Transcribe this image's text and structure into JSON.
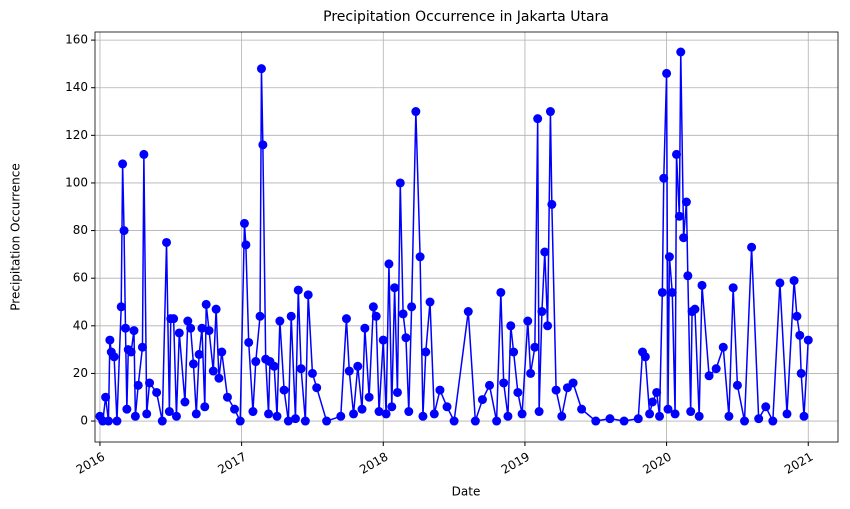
{
  "chart_data": {
    "type": "line",
    "title": "Precipitation Occurrence in Jakarta Utara",
    "x_label": "Date",
    "y_label": "Precipitation Occurrence",
    "x": [
      2016.0,
      2016.02,
      2016.04,
      2016.06,
      2016.07,
      2016.08,
      2016.1,
      2016.12,
      2016.15,
      2016.16,
      2016.17,
      2016.18,
      2016.19,
      2016.2,
      2016.22,
      2016.24,
      2016.25,
      2016.27,
      2016.3,
      2016.31,
      2016.33,
      2016.35,
      2016.4,
      2016.44,
      2016.47,
      2016.49,
      2016.5,
      2016.52,
      2016.54,
      2016.56,
      2016.6,
      2016.62,
      2016.64,
      2016.66,
      2016.68,
      2016.7,
      2016.72,
      2016.74,
      2016.75,
      2016.77,
      2016.8,
      2016.82,
      2016.84,
      2016.86,
      2016.9,
      2016.95,
      2016.99,
      2017.02,
      2017.03,
      2017.05,
      2017.08,
      2017.1,
      2017.13,
      2017.14,
      2017.15,
      2017.17,
      2017.19,
      2017.2,
      2017.23,
      2017.25,
      2017.27,
      2017.3,
      2017.33,
      2017.35,
      2017.38,
      2017.4,
      2017.42,
      2017.45,
      2017.47,
      2017.5,
      2017.53,
      2017.6,
      2017.7,
      2017.74,
      2017.76,
      2017.79,
      2017.82,
      2017.85,
      2017.87,
      2017.9,
      2017.93,
      2017.95,
      2017.97,
      2018.0,
      2018.02,
      2018.04,
      2018.06,
      2018.08,
      2018.1,
      2018.12,
      2018.14,
      2018.16,
      2018.18,
      2018.2,
      2018.23,
      2018.26,
      2018.28,
      2018.3,
      2018.33,
      2018.36,
      2018.4,
      2018.45,
      2018.5,
      2018.6,
      2018.65,
      2018.7,
      2018.75,
      2018.8,
      2018.83,
      2018.85,
      2018.88,
      2018.9,
      2018.92,
      2018.95,
      2018.98,
      2019.02,
      2019.04,
      2019.07,
      2019.09,
      2019.1,
      2019.12,
      2019.14,
      2019.16,
      2019.18,
      2019.19,
      2019.22,
      2019.26,
      2019.3,
      2019.34,
      2019.4,
      2019.5,
      2019.6,
      2019.7,
      2019.8,
      2019.83,
      2019.85,
      2019.88,
      2019.9,
      2019.93,
      2019.95,
      2019.97,
      2019.98,
      2020.0,
      2020.01,
      2020.02,
      2020.04,
      2020.06,
      2020.07,
      2020.09,
      2020.1,
      2020.12,
      2020.14,
      2020.15,
      2020.17,
      2020.18,
      2020.2,
      2020.23,
      2020.25,
      2020.3,
      2020.35,
      2020.4,
      2020.44,
      2020.47,
      2020.5,
      2020.55,
      2020.6,
      2020.65,
      2020.7,
      2020.75,
      2020.8,
      2020.85,
      2020.9,
      2020.92,
      2020.94,
      2020.95,
      2020.97,
      2021.0
    ],
    "series": [
      {
        "color": "#0000ff",
        "values": [
          2,
          0,
          10,
          0,
          34,
          29,
          27,
          0,
          48,
          108,
          80,
          39,
          5,
          30,
          29,
          38,
          2,
          15,
          31,
          112,
          3,
          16,
          12,
          0,
          75,
          4,
          43,
          43,
          2,
          37,
          8,
          42,
          39,
          24,
          3,
          28,
          39,
          6,
          49,
          38,
          21,
          47,
          18,
          29,
          10,
          5,
          0,
          83,
          74,
          33,
          4,
          25,
          44,
          148,
          116,
          26,
          3,
          25,
          23,
          2,
          42,
          13,
          0,
          44,
          1,
          55,
          22,
          0,
          53,
          20,
          14,
          0,
          2,
          43,
          21,
          3,
          23,
          5,
          39,
          10,
          48,
          44,
          4,
          34,
          3,
          66,
          6,
          56,
          12,
          100,
          45,
          35,
          4,
          48,
          130,
          69,
          2,
          29,
          50,
          3,
          13,
          6,
          0,
          46,
          0,
          9,
          15,
          0,
          54,
          16,
          2,
          40,
          29,
          12,
          3,
          42,
          20,
          31,
          127,
          4,
          46,
          71,
          40,
          130,
          91,
          13,
          2,
          14,
          16,
          5,
          0,
          1,
          0,
          1,
          29,
          27,
          3,
          8,
          12,
          2,
          54,
          102,
          146,
          5,
          69,
          54,
          3,
          112,
          86,
          155,
          77,
          92,
          61,
          4,
          46,
          47,
          2,
          57,
          19,
          22,
          31,
          2,
          56,
          15,
          0,
          73,
          1,
          6,
          0,
          58,
          3,
          59,
          44,
          36,
          20,
          2,
          34
        ]
      }
    ],
    "xlim": [
      2015.965,
      2021.21
    ],
    "xticks": [
      2016,
      2017,
      2018,
      2019,
      2020,
      2021
    ],
    "ylim": [
      -8.8,
      163.4
    ],
    "yticks": [
      0,
      20,
      40,
      60,
      80,
      100,
      120,
      140,
      160
    ],
    "grid": true
  }
}
